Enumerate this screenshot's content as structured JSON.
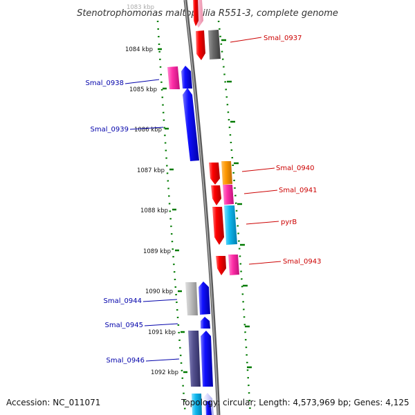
{
  "title": "Stenotrophomonas maltophilia R551-3, complete genome",
  "footer": {
    "accession": "Accession: NC_011071",
    "topology": "Topology: circular; Length: 4,573,969 bp; Genes: 4,125"
  },
  "scale_labels": {
    "partial_top": "1083 kbp",
    "k1084": "1084 kbp",
    "k1085": "1085 kbp",
    "k1086": "1086 kbp",
    "k1087": "1087 kbp",
    "k1088": "1088 kbp",
    "k1089": "1089 kbp",
    "k1090": "1090 kbp",
    "k1091": "1091 kbp",
    "k1092": "1092 kbp"
  },
  "gene_labels": {
    "smal_0937": "Smal_0937",
    "smal_0938": "Smal_0938",
    "smal_0939": "Smal_0939",
    "smal_0940": "Smal_0940",
    "smal_0941": "Smal_0941",
    "pyrb": "pyrB",
    "smal_0943": "Smal_0943",
    "smal_0944": "Smal_0944",
    "smal_0945": "Smal_0945",
    "smal_0946": "Smal_0946"
  },
  "colors": {
    "forward_label": "#cc0000",
    "reverse_label": "#0000aa",
    "tick": "#007a00",
    "backbone": "#7a7a7a"
  }
}
